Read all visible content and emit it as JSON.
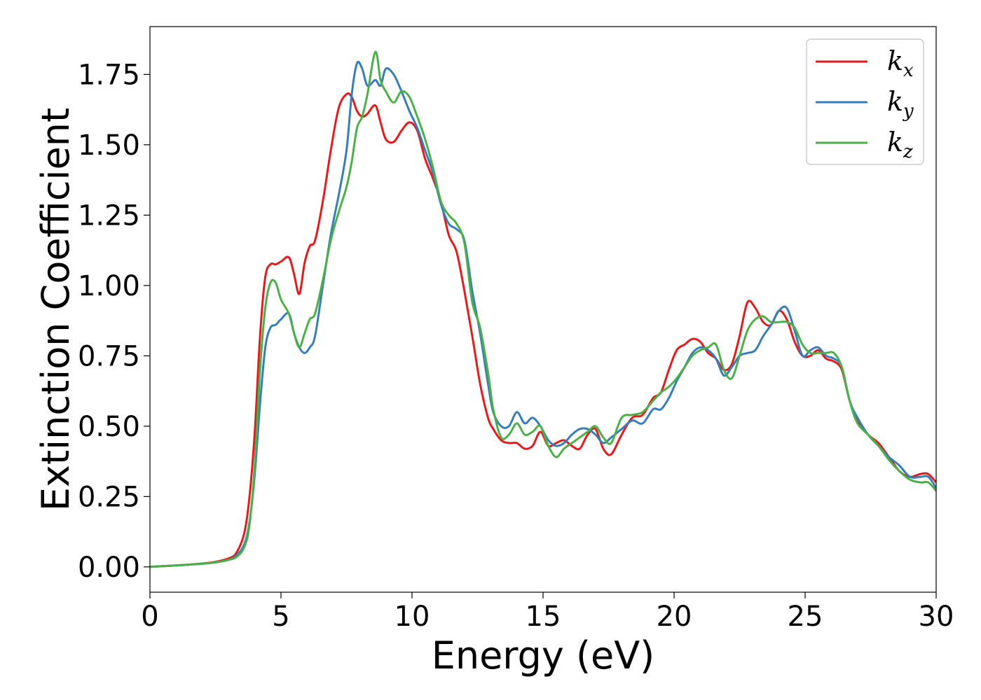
{
  "chart_data": {
    "type": "line",
    "title": "",
    "xlabel": "Energy (eV)",
    "ylabel": "Extinction Coefficient",
    "xlim": [
      0,
      30
    ],
    "ylim": [
      -0.09,
      1.92
    ],
    "xticks": [
      0,
      5,
      10,
      15,
      20,
      25,
      30
    ],
    "xtick_labels": [
      "0",
      "5",
      "10",
      "15",
      "20",
      "25",
      "30"
    ],
    "yticks": [
      0.0,
      0.25,
      0.5,
      0.75,
      1.0,
      1.25,
      1.5,
      1.75
    ],
    "ytick_labels": [
      "0.00",
      "0.25",
      "0.50",
      "0.75",
      "1.00",
      "1.25",
      "1.50",
      "1.75"
    ],
    "grid": false,
    "legend_position": "top-right",
    "series": [
      {
        "name": "k_x",
        "legend_base": "k",
        "legend_sub": "x",
        "color": "#e41a1c",
        "x": [
          0,
          1,
          2,
          2.5,
          3,
          3.3,
          3.6,
          3.8,
          4.0,
          4.2,
          4.4,
          4.6,
          4.8,
          5.0,
          5.3,
          5.5,
          5.7,
          5.9,
          6.1,
          6.3,
          6.6,
          6.9,
          7.2,
          7.5,
          7.7,
          7.9,
          8.1,
          8.3,
          8.6,
          8.8,
          9.0,
          9.3,
          9.6,
          9.9,
          10.2,
          10.5,
          10.8,
          11.1,
          11.4,
          11.7,
          12.0,
          12.3,
          12.6,
          12.9,
          13.1,
          13.4,
          13.7,
          14.0,
          14.3,
          14.6,
          14.9,
          15.2,
          15.5,
          15.8,
          16.1,
          16.4,
          16.7,
          17.0,
          17.3,
          17.6,
          18.0,
          18.4,
          18.8,
          19.2,
          19.5,
          19.8,
          20.1,
          20.4,
          20.7,
          21.0,
          21.3,
          21.6,
          21.9,
          22.2,
          22.5,
          22.8,
          23.1,
          23.4,
          23.7,
          24.0,
          24.3,
          24.6,
          24.9,
          25.2,
          25.5,
          25.8,
          26.1,
          26.4,
          26.7,
          27.0,
          27.4,
          27.8,
          28.2,
          28.6,
          29.0,
          29.4,
          29.7,
          30.0
        ],
        "y": [
          0.0,
          0.005,
          0.012,
          0.018,
          0.03,
          0.05,
          0.12,
          0.25,
          0.48,
          0.82,
          1.03,
          1.075,
          1.075,
          1.085,
          1.1,
          1.04,
          0.97,
          1.08,
          1.14,
          1.16,
          1.3,
          1.48,
          1.63,
          1.68,
          1.67,
          1.62,
          1.6,
          1.61,
          1.64,
          1.58,
          1.52,
          1.51,
          1.55,
          1.58,
          1.55,
          1.45,
          1.38,
          1.3,
          1.18,
          1.12,
          0.98,
          0.82,
          0.65,
          0.53,
          0.49,
          0.45,
          0.44,
          0.44,
          0.42,
          0.43,
          0.48,
          0.43,
          0.44,
          0.45,
          0.43,
          0.42,
          0.47,
          0.49,
          0.42,
          0.4,
          0.47,
          0.53,
          0.54,
          0.6,
          0.62,
          0.7,
          0.77,
          0.79,
          0.81,
          0.8,
          0.76,
          0.74,
          0.7,
          0.72,
          0.82,
          0.94,
          0.92,
          0.87,
          0.86,
          0.91,
          0.88,
          0.8,
          0.75,
          0.75,
          0.77,
          0.74,
          0.73,
          0.7,
          0.59,
          0.52,
          0.47,
          0.44,
          0.39,
          0.34,
          0.32,
          0.33,
          0.33,
          0.3
        ]
      },
      {
        "name": "k_y",
        "legend_base": "k",
        "legend_sub": "y",
        "color": "#377eb8",
        "x": [
          0,
          1,
          2,
          2.5,
          3,
          3.3,
          3.6,
          3.8,
          4.0,
          4.2,
          4.4,
          4.6,
          4.8,
          5.0,
          5.3,
          5.5,
          5.7,
          5.9,
          6.1,
          6.3,
          6.6,
          6.9,
          7.2,
          7.5,
          7.7,
          7.9,
          8.1,
          8.3,
          8.6,
          8.8,
          9.0,
          9.3,
          9.6,
          9.9,
          10.2,
          10.5,
          10.8,
          11.1,
          11.4,
          11.7,
          12.0,
          12.3,
          12.6,
          12.9,
          13.1,
          13.4,
          13.7,
          14.0,
          14.3,
          14.6,
          14.9,
          15.2,
          15.5,
          15.8,
          16.1,
          16.4,
          16.7,
          17.0,
          17.3,
          17.6,
          18.0,
          18.4,
          18.8,
          19.2,
          19.5,
          19.8,
          20.1,
          20.4,
          20.7,
          21.0,
          21.3,
          21.6,
          21.9,
          22.2,
          22.5,
          22.8,
          23.1,
          23.4,
          23.7,
          24.0,
          24.3,
          24.6,
          24.9,
          25.2,
          25.5,
          25.8,
          26.1,
          26.4,
          26.7,
          27.0,
          27.4,
          27.8,
          28.2,
          28.6,
          29.0,
          29.4,
          29.7,
          30.0
        ],
        "y": [
          0.0,
          0.005,
          0.011,
          0.016,
          0.025,
          0.04,
          0.08,
          0.16,
          0.33,
          0.58,
          0.78,
          0.85,
          0.86,
          0.88,
          0.9,
          0.83,
          0.78,
          0.76,
          0.78,
          0.82,
          1.0,
          1.18,
          1.32,
          1.48,
          1.68,
          1.79,
          1.77,
          1.71,
          1.73,
          1.71,
          1.77,
          1.75,
          1.69,
          1.62,
          1.56,
          1.48,
          1.4,
          1.29,
          1.22,
          1.2,
          1.16,
          0.98,
          0.83,
          0.65,
          0.55,
          0.5,
          0.5,
          0.55,
          0.51,
          0.53,
          0.5,
          0.45,
          0.43,
          0.44,
          0.47,
          0.49,
          0.49,
          0.47,
          0.44,
          0.46,
          0.49,
          0.52,
          0.51,
          0.56,
          0.56,
          0.6,
          0.66,
          0.71,
          0.76,
          0.78,
          0.77,
          0.74,
          0.68,
          0.71,
          0.75,
          0.76,
          0.77,
          0.82,
          0.86,
          0.91,
          0.92,
          0.84,
          0.75,
          0.77,
          0.78,
          0.75,
          0.74,
          0.71,
          0.59,
          0.53,
          0.47,
          0.43,
          0.39,
          0.36,
          0.32,
          0.32,
          0.32,
          0.28
        ]
      },
      {
        "name": "k_z",
        "legend_base": "k",
        "legend_sub": "z",
        "color": "#4daf4a",
        "x": [
          0,
          1,
          2,
          2.5,
          3,
          3.3,
          3.6,
          3.8,
          4.0,
          4.2,
          4.4,
          4.6,
          4.8,
          5.0,
          5.3,
          5.5,
          5.7,
          5.9,
          6.1,
          6.3,
          6.6,
          6.9,
          7.2,
          7.5,
          7.7,
          7.9,
          8.1,
          8.3,
          8.6,
          8.8,
          9.0,
          9.3,
          9.6,
          9.9,
          10.2,
          10.5,
          10.8,
          11.1,
          11.4,
          11.7,
          12.0,
          12.3,
          12.6,
          12.9,
          13.1,
          13.4,
          13.7,
          14.0,
          14.3,
          14.6,
          14.9,
          15.2,
          15.5,
          15.8,
          16.1,
          16.4,
          16.7,
          17.0,
          17.3,
          17.6,
          18.0,
          18.4,
          18.8,
          19.2,
          19.5,
          19.8,
          20.1,
          20.4,
          20.7,
          21.0,
          21.3,
          21.6,
          21.9,
          22.2,
          22.5,
          22.8,
          23.1,
          23.4,
          23.7,
          24.0,
          24.3,
          24.6,
          24.9,
          25.2,
          25.5,
          25.8,
          26.1,
          26.4,
          26.7,
          27.0,
          27.4,
          27.8,
          28.2,
          28.6,
          29.0,
          29.4,
          29.7,
          30.0
        ],
        "y": [
          0.0,
          0.005,
          0.011,
          0.016,
          0.025,
          0.035,
          0.07,
          0.15,
          0.36,
          0.7,
          0.92,
          1.01,
          1.01,
          0.95,
          0.9,
          0.83,
          0.78,
          0.83,
          0.88,
          0.9,
          1.02,
          1.16,
          1.26,
          1.35,
          1.44,
          1.56,
          1.6,
          1.68,
          1.83,
          1.73,
          1.69,
          1.65,
          1.69,
          1.67,
          1.6,
          1.52,
          1.42,
          1.3,
          1.25,
          1.22,
          1.15,
          0.94,
          0.85,
          0.69,
          0.56,
          0.46,
          0.47,
          0.51,
          0.47,
          0.48,
          0.5,
          0.43,
          0.39,
          0.42,
          0.44,
          0.46,
          0.48,
          0.5,
          0.46,
          0.44,
          0.53,
          0.54,
          0.55,
          0.59,
          0.62,
          0.64,
          0.67,
          0.71,
          0.75,
          0.77,
          0.78,
          0.79,
          0.7,
          0.67,
          0.75,
          0.84,
          0.88,
          0.89,
          0.87,
          0.87,
          0.87,
          0.85,
          0.79,
          0.76,
          0.76,
          0.76,
          0.76,
          0.71,
          0.59,
          0.51,
          0.47,
          0.43,
          0.38,
          0.34,
          0.31,
          0.3,
          0.3,
          0.27
        ]
      }
    ]
  }
}
